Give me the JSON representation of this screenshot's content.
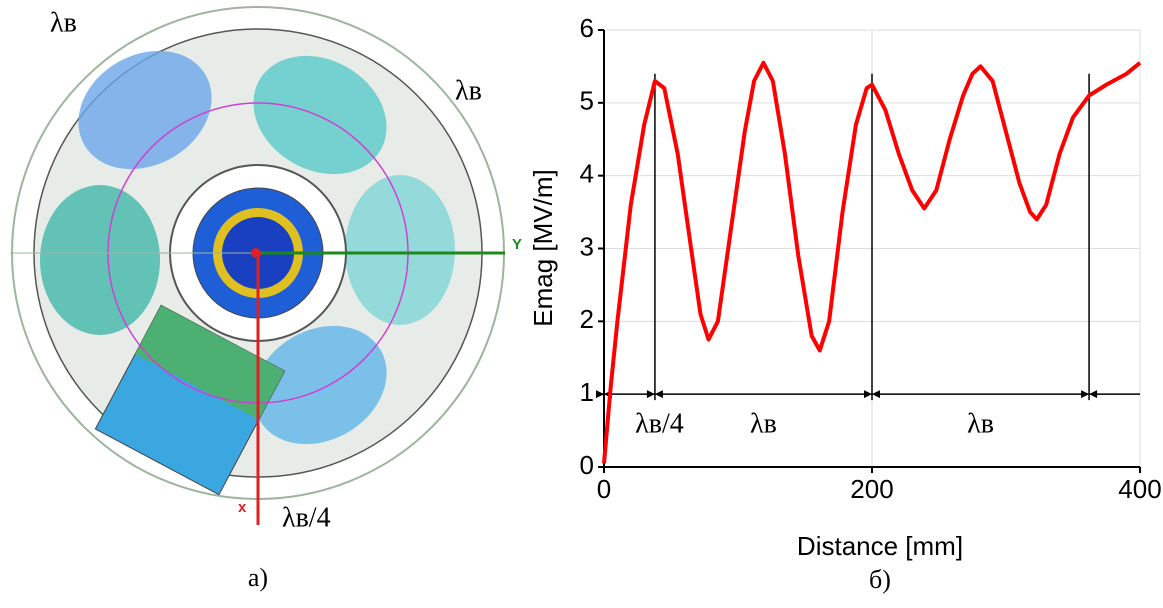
{
  "left_panel": {
    "labels": [
      "λв",
      "λв",
      "λв/4"
    ],
    "axis_y": "Y",
    "axis_x": "x",
    "caption": "а)"
  },
  "chart_data": {
    "type": "line",
    "caption": "б)",
    "x_label": "Distance [mm]",
    "y_label": "Emag [MV/m]",
    "x": [
      0,
      5,
      10,
      20,
      30,
      38,
      45,
      55,
      65,
      72,
      78,
      85,
      95,
      105,
      112,
      119,
      126,
      135,
      145,
      155,
      161,
      168,
      178,
      188,
      196,
      200,
      210,
      220,
      230,
      239,
      248,
      258,
      268,
      275,
      281,
      290,
      300,
      310,
      318,
      323,
      330,
      340,
      350,
      362,
      375,
      390,
      400
    ],
    "series": [
      {
        "color": "#ff0000",
        "values": [
          0.05,
          1.1,
          2.0,
          3.6,
          4.7,
          5.3,
          5.2,
          4.3,
          3.0,
          2.1,
          1.75,
          2.0,
          3.3,
          4.6,
          5.3,
          5.55,
          5.3,
          4.3,
          2.9,
          1.8,
          1.6,
          2.0,
          3.5,
          4.7,
          5.2,
          5.25,
          4.9,
          4.3,
          3.8,
          3.55,
          3.8,
          4.5,
          5.1,
          5.4,
          5.5,
          5.3,
          4.6,
          3.9,
          3.5,
          3.4,
          3.6,
          4.3,
          4.8,
          5.1,
          5.25,
          5.4,
          5.55
        ]
      }
    ],
    "xlim": [
      0,
      400
    ],
    "ylim": [
      0,
      6
    ],
    "xticks": [
      0,
      200,
      400
    ],
    "yticks": [
      0,
      1,
      2,
      3,
      4,
      5,
      6
    ],
    "grid": true,
    "span_y": 1,
    "markers": [
      0,
      38,
      200,
      362
    ],
    "span_labels": [
      "λв/4",
      "λв",
      "λв"
    ]
  }
}
